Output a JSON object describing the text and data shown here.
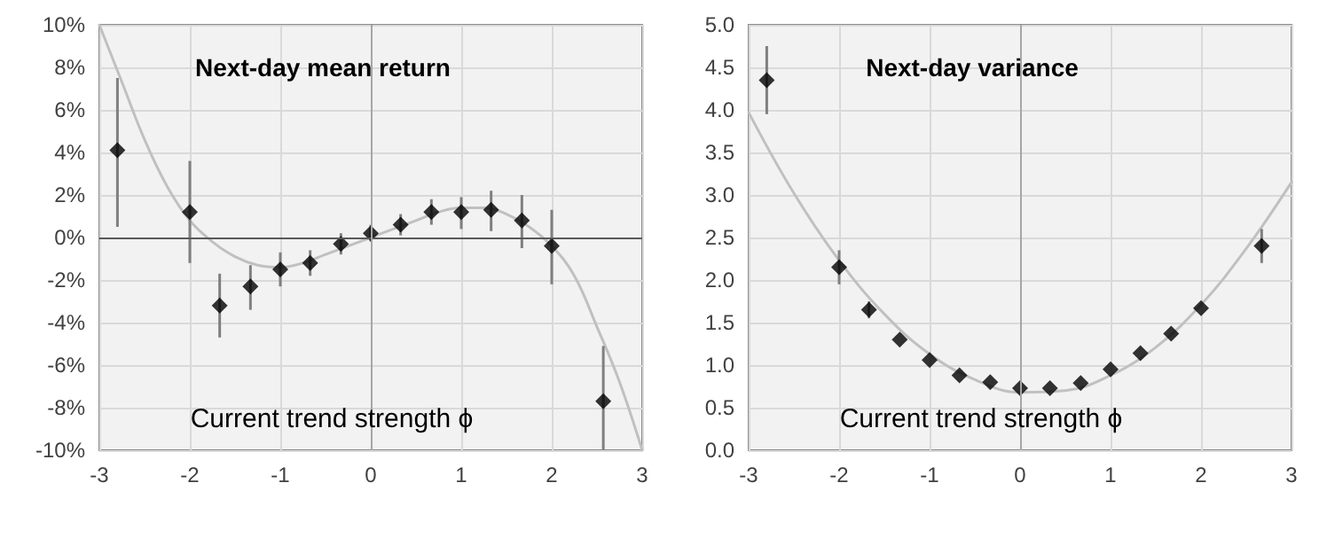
{
  "chart_data": [
    {
      "type": "scatter",
      "title": "Next-day mean return",
      "xlabel": "Current trend strength ϕ",
      "xlim": [
        -3,
        3
      ],
      "xticks": [
        -3,
        -2,
        -1,
        0,
        1,
        2,
        3
      ],
      "ylim": [
        -10,
        10
      ],
      "yticks": [
        {
          "value": -10,
          "label": "-10%"
        },
        {
          "value": -8,
          "label": "-8%"
        },
        {
          "value": -6,
          "label": "-6%"
        },
        {
          "value": -4,
          "label": "-4%"
        },
        {
          "value": -2,
          "label": "-2%"
        },
        {
          "value": 0,
          "label": "0%"
        },
        {
          "value": 2,
          "label": "2%"
        },
        {
          "value": 4,
          "label": "4%"
        },
        {
          "value": 6,
          "label": "6%"
        },
        {
          "value": 8,
          "label": "8%"
        },
        {
          "value": 10,
          "label": "10%"
        }
      ],
      "grid": true,
      "marker": "diamond",
      "ref_lines": [
        {
          "axis": "y",
          "value": 0,
          "color": "#595959"
        },
        {
          "axis": "x",
          "value": 0,
          "color": "#a6a6a6"
        }
      ],
      "series": [
        {
          "type": "line",
          "color": "#c0c0c0",
          "marker": "none",
          "x": [
            -3,
            -2.75,
            -2.5,
            -2.25,
            -2,
            -1.75,
            -1.5,
            -1.25,
            -1,
            -0.75,
            -0.5,
            -0.25,
            0,
            0.25,
            0.5,
            0.75,
            1,
            1.25,
            1.5,
            1.75,
            2,
            2.25,
            2.5,
            2.75,
            3
          ],
          "values": [
            10,
            7.3,
            4.6,
            2.4,
            0.8,
            -0.2,
            -0.9,
            -1.3,
            -1.4,
            -1.2,
            -0.8,
            -0.4,
            0,
            0.4,
            0.8,
            1.2,
            1.4,
            1.4,
            1.1,
            0.5,
            -0.4,
            -1.8,
            -4.2,
            -6.8,
            -10
          ]
        },
        {
          "color": "#000000",
          "x": [
            -2.8,
            -2,
            -1.67,
            -1.33,
            -1,
            -0.67,
            -0.33,
            0,
            0.33,
            0.67,
            1,
            1.33,
            1.67,
            2,
            2.57
          ],
          "values": [
            4.1,
            1.2,
            -3.2,
            -2.3,
            -1.5,
            -1.2,
            -0.3,
            0.2,
            0.6,
            1.2,
            1.2,
            1.3,
            0.8,
            -0.4,
            -7.7
          ],
          "errors": [
            [
              0.5,
              7.5
            ],
            [
              -1.2,
              3.6
            ],
            [
              -4.7,
              -1.7
            ],
            [
              -3.4,
              -1.3
            ],
            [
              -2.3,
              -0.7
            ],
            [
              -1.8,
              -0.6
            ],
            [
              -0.8,
              0.2
            ],
            [
              -0.2,
              0.6
            ],
            [
              0.1,
              1.1
            ],
            [
              0.6,
              1.8
            ],
            [
              0.4,
              1.9
            ],
            [
              0.3,
              2.2
            ],
            [
              -0.5,
              2
            ],
            [
              -2.2,
              1.3
            ],
            [
              -10,
              -5.1
            ]
          ]
        }
      ]
    },
    {
      "type": "scatter",
      "title": "Next-day variance",
      "xlabel": "Current trend strength ϕ",
      "xlim": [
        -3,
        3
      ],
      "xticks": [
        -3,
        -2,
        -1,
        0,
        1,
        2,
        3
      ],
      "ylim": [
        0,
        5
      ],
      "yticks": [
        {
          "value": 0,
          "label": "0.0"
        },
        {
          "value": 0.5,
          "label": "0.5"
        },
        {
          "value": 1,
          "label": "1.0"
        },
        {
          "value": 1.5,
          "label": "1.5"
        },
        {
          "value": 2,
          "label": "2.0"
        },
        {
          "value": 2.5,
          "label": "2.5"
        },
        {
          "value": 3,
          "label": "3.0"
        },
        {
          "value": 3.5,
          "label": "3.5"
        },
        {
          "value": 4,
          "label": "4.0"
        },
        {
          "value": 4.5,
          "label": "4.5"
        },
        {
          "value": 5,
          "label": "5.0"
        }
      ],
      "grid": true,
      "marker": "diamond",
      "ref_lines": [
        {
          "axis": "x",
          "value": 0,
          "color": "#a6a6a6"
        }
      ],
      "series": [
        {
          "type": "line",
          "color": "#c0c0c0",
          "marker": "none",
          "x": [
            -3,
            -2.5,
            -2,
            -1.5,
            -1,
            -0.5,
            0,
            0.5,
            1,
            1.5,
            2,
            2.5,
            3
          ],
          "values": [
            3.97,
            3.02,
            2.23,
            1.6,
            1.13,
            0.83,
            0.68,
            0.7,
            0.88,
            1.21,
            1.71,
            2.37,
            3.15
          ]
        },
        {
          "color": "#000000",
          "x": [
            -2.8,
            -2,
            -1.67,
            -1.33,
            -1,
            -0.67,
            -0.33,
            0,
            0.33,
            0.67,
            1,
            1.33,
            1.67,
            2,
            2.67
          ],
          "values": [
            4.35,
            2.15,
            1.65,
            1.3,
            1.06,
            0.88,
            0.8,
            0.73,
            0.73,
            0.79,
            0.95,
            1.14,
            1.37,
            1.67,
            2.4
          ],
          "errors": [
            [
              3.95,
              4.75
            ],
            [
              1.95,
              2.35
            ],
            [
              1.55,
              1.75
            ],
            null,
            null,
            null,
            null,
            null,
            null,
            null,
            null,
            null,
            null,
            null,
            [
              2.2,
              2.6
            ]
          ]
        }
      ]
    }
  ]
}
